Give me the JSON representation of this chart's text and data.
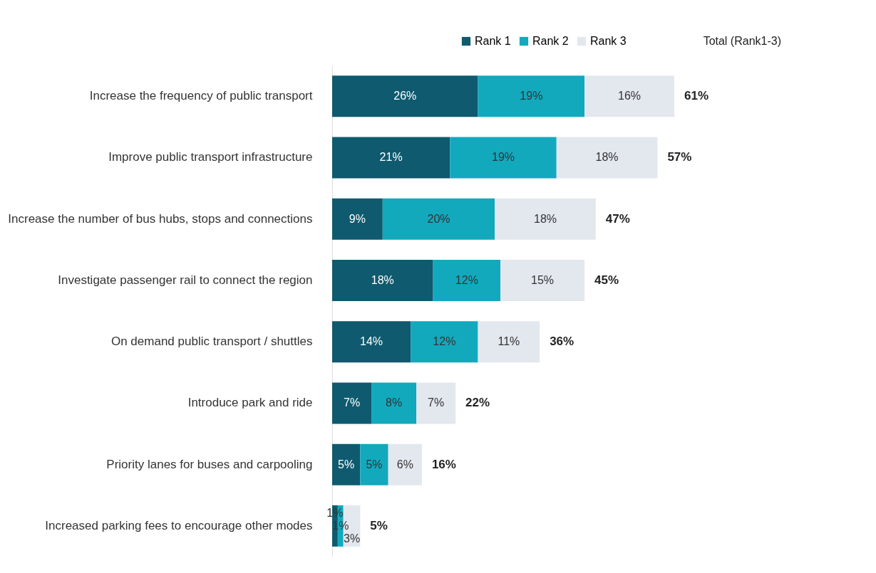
{
  "chart_data": {
    "type": "bar",
    "orientation": "horizontal",
    "stacked": true,
    "categories": [
      "Increase the frequency of public transport",
      "Improve public transport infrastructure",
      "Increase the number of bus hubs, stops and connections",
      "Investigate passenger rail to connect the region",
      "On demand public transport / shuttles",
      "Introduce park and ride",
      "Priority lanes for buses and carpooling",
      "Increased parking fees to encourage other modes"
    ],
    "series": [
      {
        "name": "Rank 1",
        "color": "#0f5a6e",
        "values": [
          26,
          21,
          9,
          18,
          14,
          7,
          5,
          1
        ],
        "value_labels": [
          "26%",
          "21%",
          "9%",
          "18%",
          "14%",
          "7%",
          "5%",
          "1%"
        ]
      },
      {
        "name": "Rank 2",
        "color": "#12a9bd",
        "values": [
          19,
          19,
          20,
          12,
          12,
          8,
          5,
          1
        ],
        "value_labels": [
          "19%",
          "19%",
          "20%",
          "12%",
          "12%",
          "8%",
          "5%",
          "1%"
        ]
      },
      {
        "name": "Rank 3",
        "color": "#e3e7ee",
        "values": [
          16,
          18,
          18,
          15,
          11,
          7,
          6,
          3
        ],
        "value_labels": [
          "16%",
          "18%",
          "18%",
          "15%",
          "11%",
          "7%",
          "6%",
          "3%"
        ]
      }
    ],
    "totals": [
      "61%",
      "57%",
      "47%",
      "45%",
      "36%",
      "22%",
      "16%",
      "5%"
    ],
    "annotations": [
      "Total (Rank1-3)"
    ],
    "legend": "top right"
  }
}
